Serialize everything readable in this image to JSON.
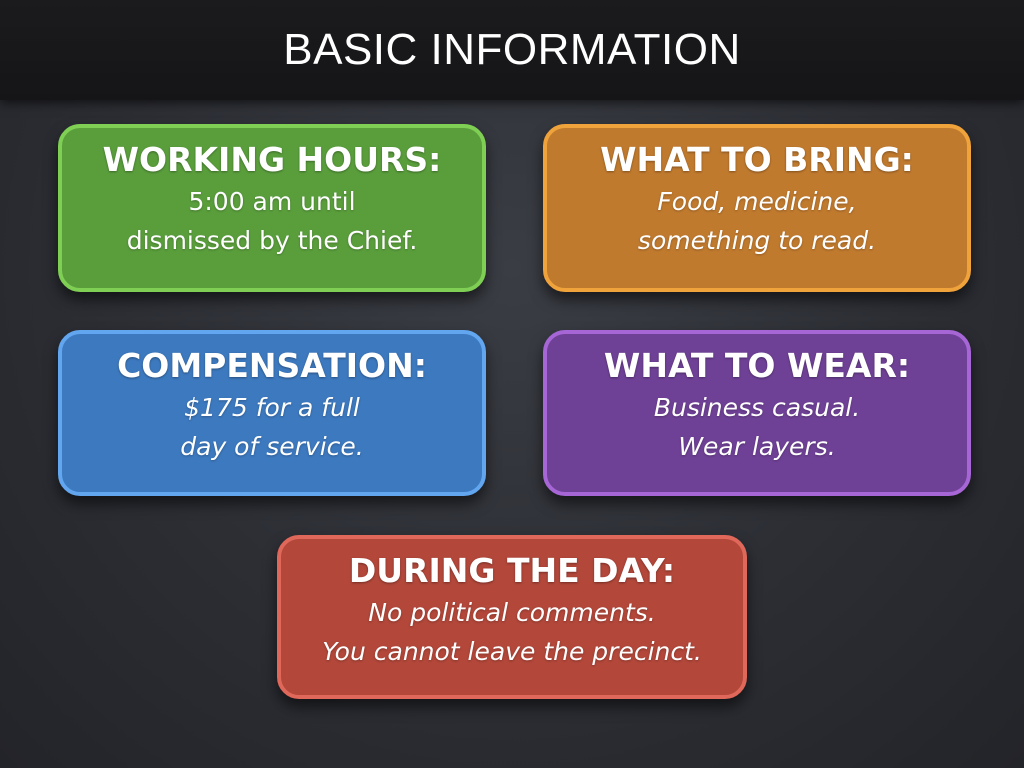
{
  "title": "BASIC INFORMATION",
  "colors": {
    "green": "#5a9e3c",
    "orange": "#c07a2e",
    "blue": "#3d79bf",
    "purple": "#6f4196",
    "red": "#b2473a"
  },
  "cards": {
    "working_hours": {
      "heading": "WORKING HOURS:",
      "lines": [
        "5:00 am until",
        "dismissed by the Chief."
      ]
    },
    "what_to_bring": {
      "heading": "WHAT TO BRING:",
      "lines": [
        "Food, medicine,",
        "something to read."
      ]
    },
    "compensation": {
      "heading": "COMPENSATION:",
      "lines": [
        "$175 for a full",
        "day of service."
      ]
    },
    "what_to_wear": {
      "heading": "WHAT TO WEAR:",
      "lines": [
        "Business casual.",
        "Wear layers."
      ]
    },
    "during_the_day": {
      "heading": "DURING THE DAY:",
      "lines": [
        "No political comments.",
        "You cannot leave the precinct."
      ]
    }
  }
}
